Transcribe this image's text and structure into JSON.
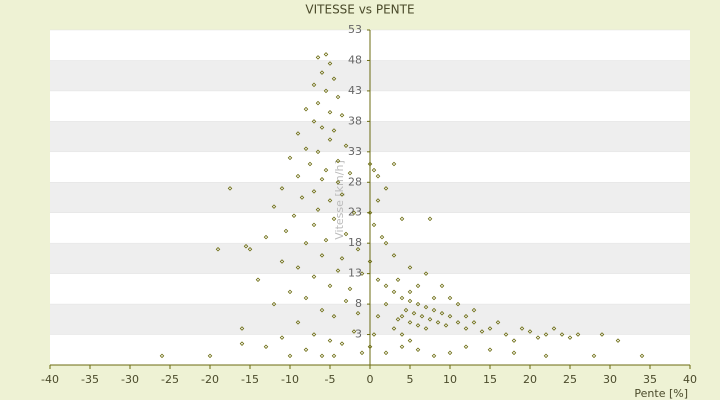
{
  "chart_data": {
    "type": "scatter",
    "title": "VITESSE vs PENTE",
    "x_label": "Pente [%]",
    "y_label": "Vitesse [km/h]",
    "color": "#6b6b10",
    "xlim": [
      -40,
      40
    ],
    "xticks": [
      -40,
      -35,
      -30,
      -25,
      -20,
      -15,
      -10,
      -5,
      0,
      5,
      10,
      15,
      20,
      25,
      30,
      35,
      40
    ],
    "ylim": [
      -2,
      53
    ],
    "yticks": [
      3,
      8,
      13,
      18,
      23,
      28,
      33,
      38,
      43,
      48,
      53
    ],
    "x": [
      -6.5,
      -5.5,
      -5,
      -6,
      -4.5,
      -7,
      -5.5,
      -4,
      -6.5,
      -8,
      -5,
      -3.5,
      -7,
      -6,
      -4.5,
      -9,
      -5,
      -3,
      -8,
      -6.5,
      -10,
      -4,
      -7.5,
      -5.5,
      -2.5,
      -9,
      -6,
      -4,
      -11,
      -7,
      -3.5,
      -8.5,
      -5,
      -12,
      -6.5,
      -2,
      -9.5,
      -4.5,
      -7,
      -10.5,
      -3,
      -13,
      -5.5,
      -8,
      -1.5,
      -15,
      -6,
      -3.5,
      -11,
      -9,
      -4,
      -1,
      -7,
      -14,
      -5,
      -2.5,
      -10,
      -8,
      -3,
      -12,
      -6,
      -1.5,
      -4.5,
      -9,
      -16,
      -2,
      -7,
      -11,
      -5,
      -3.5,
      -13,
      -8,
      -1,
      -6,
      -10,
      -4.5,
      -26,
      -19,
      -17.5,
      -15.5,
      -20,
      -16,
      0,
      0.5,
      1,
      3,
      2,
      4,
      1,
      0,
      0.5,
      1.5,
      2,
      7.5,
      3,
      5,
      0,
      1,
      2,
      3,
      4,
      5,
      6,
      7,
      8,
      9,
      10,
      4.5,
      5.5,
      6.5,
      7.5,
      8.5,
      3.5,
      4,
      5,
      6,
      7,
      9.5,
      11,
      12,
      13,
      14,
      15,
      16,
      17,
      18,
      19,
      20,
      21,
      22,
      23,
      24,
      25,
      26,
      29,
      31,
      34,
      28,
      22,
      18,
      15,
      12,
      10,
      8,
      6,
      4,
      2,
      0.5,
      0,
      1,
      2,
      9,
      7,
      11,
      13,
      6,
      8,
      3.5,
      5,
      10,
      12,
      4,
      5,
      3
    ],
    "values": [
      48.5,
      49,
      47.5,
      46,
      45,
      44,
      43,
      42,
      41,
      40,
      39.5,
      39,
      38,
      37,
      36.5,
      36,
      35,
      34,
      33.5,
      33,
      32,
      31.5,
      31,
      30,
      29.5,
      29,
      28.5,
      28,
      27,
      26.5,
      26,
      25.5,
      25,
      24,
      23.5,
      23,
      22.5,
      22,
      21,
      20,
      19.5,
      19,
      18.5,
      18,
      17,
      17,
      16,
      15.5,
      15,
      14,
      13.5,
      13,
      12.5,
      12,
      11,
      10.5,
      10,
      9,
      8.5,
      8,
      7,
      6.5,
      6,
      5,
      4,
      3.5,
      3,
      2.5,
      2,
      1.5,
      1,
      0.5,
      0,
      -0.5,
      -0.5,
      -0.5,
      -0.5,
      17,
      27,
      17.5,
      -0.5,
      1.5,
      31,
      30,
      29,
      31,
      27,
      22,
      25,
      23,
      21,
      19,
      18,
      22,
      16,
      14,
      15,
      12,
      11,
      10,
      9,
      8.5,
      8,
      7.5,
      7,
      6.5,
      6,
      7,
      6.5,
      6,
      5.5,
      5,
      5.5,
      6,
      5,
      4.5,
      4,
      4.5,
      5,
      4,
      5,
      3.5,
      4,
      5,
      3,
      2,
      4,
      3.5,
      2.5,
      3,
      4,
      3,
      2.5,
      3,
      3,
      2,
      -0.5,
      -0.5,
      -0.5,
      0,
      0.5,
      1,
      0,
      -0.5,
      0.5,
      1,
      0,
      3,
      1,
      6,
      8,
      11,
      13,
      8,
      7,
      11,
      9,
      12,
      10,
      9,
      6,
      3,
      2,
      4
    ]
  }
}
